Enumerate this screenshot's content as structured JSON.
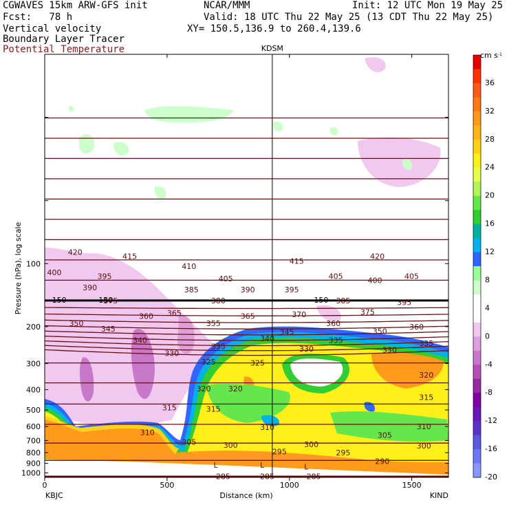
{
  "header": {
    "line1_left": "CGWAVES 15km ARW-GFS init",
    "line1_center": "NCAR/MMM",
    "line1_right": "Init: 12 UTC Mon 19 May 25",
    "line2_left": "Fcst:   78 h",
    "line2_right": "Valid: 18 UTC Thu 22 May 25 (13 CDT Thu 22 May 25)",
    "line3_left": "Vertical velocity",
    "line3_right": "XY= 150.5,136.9 to 260.4,139.6",
    "line4_left": "Boundary Layer Tracer",
    "line5_left": "Potential Temperature"
  },
  "chart_data": {
    "type": "heatmap",
    "title": "",
    "xlabel": "Distance (km)",
    "ylabel": "Pressure (hPa), log scale",
    "xlim": [
      0,
      1650
    ],
    "ylim": [
      1050,
      10
    ],
    "x_ticks": [
      0,
      500,
      1000,
      1500
    ],
    "y_ticks": [
      100,
      200,
      300,
      400,
      500,
      600,
      700,
      800,
      900,
      1000
    ],
    "station_marker": {
      "label": "KDSM",
      "x": 930
    },
    "left_endpoint_label": "KBJC",
    "right_endpoint_label": "KIND",
    "colorbar": {
      "units": "cm s",
      "units_exponent": "-1",
      "labels": [
        36,
        32,
        28,
        24,
        20,
        16,
        12,
        8,
        4,
        0,
        -4,
        -8,
        -12,
        -16,
        -20
      ],
      "colors": [
        "#e60000",
        "#ff3300",
        "#ff5a1a",
        "#ff7a1a",
        "#ff9a1a",
        "#ffb41a",
        "#ffd21a",
        "#fff01a",
        "#e6ff4d",
        "#b3f25a",
        "#66e64d",
        "#33cc33",
        "#00b3a0",
        "#00b3e6",
        "#3366ff",
        "#99ff99",
        "#ccffcc",
        "#ffffff",
        "#ffffff",
        "#f0c8f0",
        "#dca0dc",
        "#c878c8",
        "#b450b4",
        "#9628a0",
        "#7f00a0",
        "#6a1ab4",
        "#5a32c8",
        "#5a5adc",
        "#6e78f0",
        "#8c96ff"
      ]
    },
    "theta_labels": [
      {
        "v": 420,
        "x": 95,
        "p": 88
      },
      {
        "v": 415,
        "x": 318,
        "p": 92
      },
      {
        "v": 400,
        "x": 10,
        "p": 110
      },
      {
        "v": 395,
        "x": 215,
        "p": 115
      },
      {
        "v": 390,
        "x": 155,
        "p": 130
      },
      {
        "v": 410,
        "x": 560,
        "p": 103
      },
      {
        "v": 405,
        "x": 710,
        "p": 118
      },
      {
        "v": 385,
        "x": 570,
        "p": 133
      },
      {
        "v": 380,
        "x": 680,
        "p": 150
      },
      {
        "v": 390,
        "x": 800,
        "p": 133
      },
      {
        "v": 415,
        "x": 1000,
        "p": 97
      },
      {
        "v": 395,
        "x": 980,
        "p": 133
      },
      {
        "v": 405,
        "x": 1160,
        "p": 115
      },
      {
        "v": 420,
        "x": 1330,
        "p": 92
      },
      {
        "v": 400,
        "x": 1320,
        "p": 120
      },
      {
        "v": 405,
        "x": 1470,
        "p": 115
      },
      {
        "v": 375,
        "x": 240,
        "p": 150
      },
      {
        "v": 360,
        "x": 385,
        "p": 178
      },
      {
        "v": 365,
        "x": 500,
        "p": 172
      },
      {
        "v": 355,
        "x": 660,
        "p": 193
      },
      {
        "v": 365,
        "x": 800,
        "p": 178
      },
      {
        "v": 370,
        "x": 1010,
        "p": 175
      },
      {
        "v": 385,
        "x": 1190,
        "p": 150
      },
      {
        "v": 375,
        "x": 1290,
        "p": 170
      },
      {
        "v": 395,
        "x": 1440,
        "p": 153
      },
      {
        "v": 350,
        "x": 100,
        "p": 193
      },
      {
        "v": 345,
        "x": 230,
        "p": 205
      },
      {
        "v": 360,
        "x": 1150,
        "p": 193
      },
      {
        "v": 360,
        "x": 1490,
        "p": 200
      },
      {
        "v": 340,
        "x": 360,
        "p": 232
      },
      {
        "v": 345,
        "x": 960,
        "p": 212
      },
      {
        "v": 350,
        "x": 1340,
        "p": 210
      },
      {
        "v": 330,
        "x": 490,
        "p": 268
      },
      {
        "v": 335,
        "x": 680,
        "p": 248
      },
      {
        "v": 340,
        "x": 880,
        "p": 228
      },
      {
        "v": 335,
        "x": 1160,
        "p": 232
      },
      {
        "v": 330,
        "x": 1040,
        "p": 255
      },
      {
        "v": 330,
        "x": 1380,
        "p": 258
      },
      {
        "v": 335,
        "x": 1530,
        "p": 240
      },
      {
        "v": 325,
        "x": 640,
        "p": 295
      },
      {
        "v": 325,
        "x": 840,
        "p": 298
      },
      {
        "v": 320,
        "x": 620,
        "p": 395
      },
      {
        "v": 320,
        "x": 750,
        "p": 395
      },
      {
        "v": 320,
        "x": 1530,
        "p": 340
      },
      {
        "v": 315,
        "x": 480,
        "p": 488
      },
      {
        "v": 315,
        "x": 660,
        "p": 495
      },
      {
        "v": 315,
        "x": 1530,
        "p": 435
      },
      {
        "v": 310,
        "x": 390,
        "p": 640
      },
      {
        "v": 310,
        "x": 880,
        "p": 605
      },
      {
        "v": 310,
        "x": 1520,
        "p": 600
      },
      {
        "v": 305,
        "x": 560,
        "p": 710
      },
      {
        "v": 305,
        "x": 1360,
        "p": 660
      },
      {
        "v": 300,
        "x": 730,
        "p": 735
      },
      {
        "v": 300,
        "x": 1060,
        "p": 730
      },
      {
        "v": 300,
        "x": 1520,
        "p": 740
      },
      {
        "v": 295,
        "x": 930,
        "p": 790
      },
      {
        "v": 295,
        "x": 1190,
        "p": 800
      },
      {
        "v": 290,
        "x": 1350,
        "p": 880
      },
      {
        "v": 285,
        "x": 700,
        "p": 1040
      },
      {
        "v": 285,
        "x": 880,
        "p": 1040
      },
      {
        "v": 285,
        "x": 1070,
        "p": 1040
      }
    ],
    "tropopause_labels": [
      {
        "v": 150,
        "x": 30,
        "p": 150
      },
      {
        "v": 150,
        "x": 220,
        "p": 150
      },
      {
        "v": 150,
        "x": 1100,
        "p": 150
      }
    ],
    "low_markers": [
      {
        "label": "L",
        "x": 690,
        "p": 915
      },
      {
        "label": "L",
        "x": 880,
        "p": 915
      },
      {
        "label": "L",
        "x": 1060,
        "p": 935
      }
    ]
  }
}
